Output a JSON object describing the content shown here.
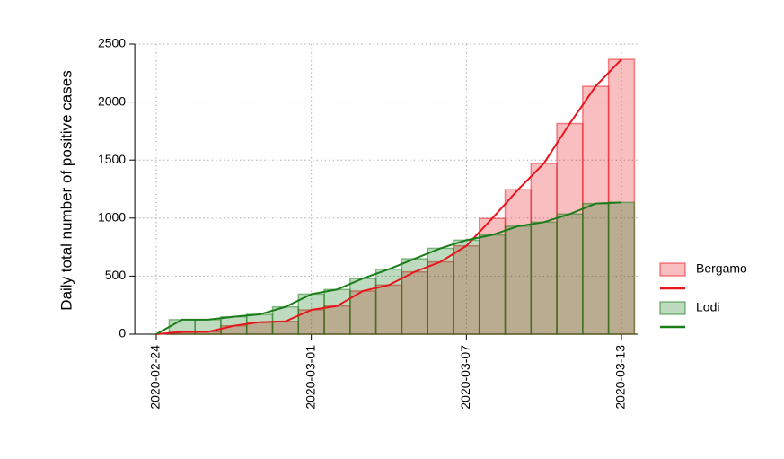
{
  "chart_data": {
    "type": "bar-line",
    "y_label": "Daily total number of positive cases",
    "x": [
      "2020-02-24",
      "2020-02-25",
      "2020-02-26",
      "2020-02-27",
      "2020-02-28",
      "2020-02-29",
      "2020-03-01",
      "2020-03-02",
      "2020-03-03",
      "2020-03-04",
      "2020-03-05",
      "2020-03-06",
      "2020-03-07",
      "2020-03-08",
      "2020-03-09",
      "2020-03-10",
      "2020-03-11",
      "2020-03-12",
      "2020-03-13"
    ],
    "series": [
      {
        "name": "Bergamo",
        "color": "#e8141b",
        "values": [
          0,
          18,
          20,
          72,
          103,
          110,
          209,
          243,
          372,
          423,
          537,
          623,
          761,
          997,
          1245,
          1472,
          1815,
          2136,
          2368
        ]
      },
      {
        "name": "Lodi",
        "color": "#1a7d1a",
        "values": [
          0,
          125,
          125,
          150,
          170,
          235,
          345,
          385,
          480,
          560,
          650,
          740,
          810,
          855,
          930,
          965,
          1035,
          1125,
          1135
        ]
      }
    ],
    "ylim": [
      0,
      2500
    ],
    "yticks": [
      0,
      500,
      1000,
      1500,
      2000,
      2500
    ],
    "xticks": [
      "2020-02-24",
      "2020-03-01",
      "2020-03-07",
      "2020-03-13"
    ],
    "grid": true
  }
}
